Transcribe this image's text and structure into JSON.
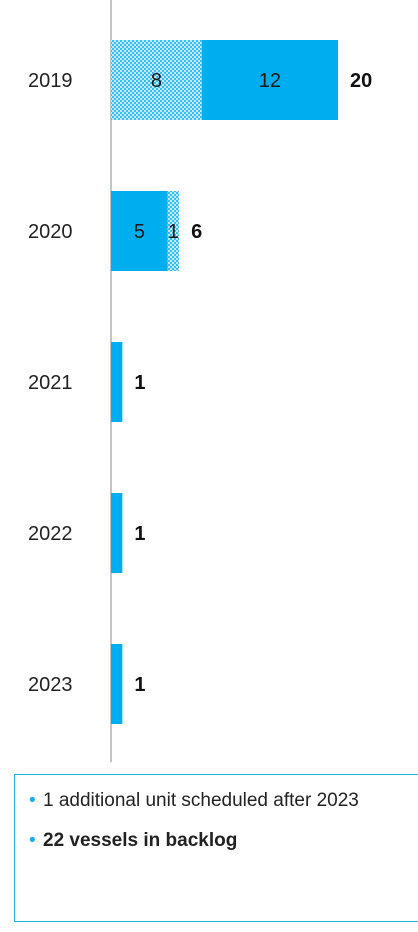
{
  "chart_data": {
    "type": "bar",
    "orientation": "horizontal",
    "stacked": true,
    "categories": [
      "2019",
      "2020",
      "2021",
      "2022",
      "2023"
    ],
    "series": [
      {
        "values": [
          8,
          1,
          0,
          0,
          0
        ],
        "pattern": "hatched",
        "color": "#54c8f0"
      },
      {
        "values": [
          12,
          5,
          1,
          1,
          1
        ],
        "pattern": "solid",
        "color": "#00adef"
      }
    ],
    "totals": [
      "20",
      "6",
      "1",
      "1",
      "1"
    ],
    "segment_labels": [
      [
        "8",
        "12"
      ],
      [
        "1",
        "5"
      ],
      [
        "",
        ""
      ],
      [
        "",
        ""
      ],
      [
        "",
        ""
      ]
    ],
    "title": "",
    "xlabel": "",
    "ylabel": "",
    "grid": false,
    "legend": "none"
  },
  "notes": [
    {
      "text": "1 additional unit scheduled after 2023",
      "bold": false
    },
    {
      "text": "22 vessels in backlog",
      "bold": true
    }
  ],
  "colors": {
    "accent": "#00adef",
    "notes_border": "#1ab0e6"
  }
}
